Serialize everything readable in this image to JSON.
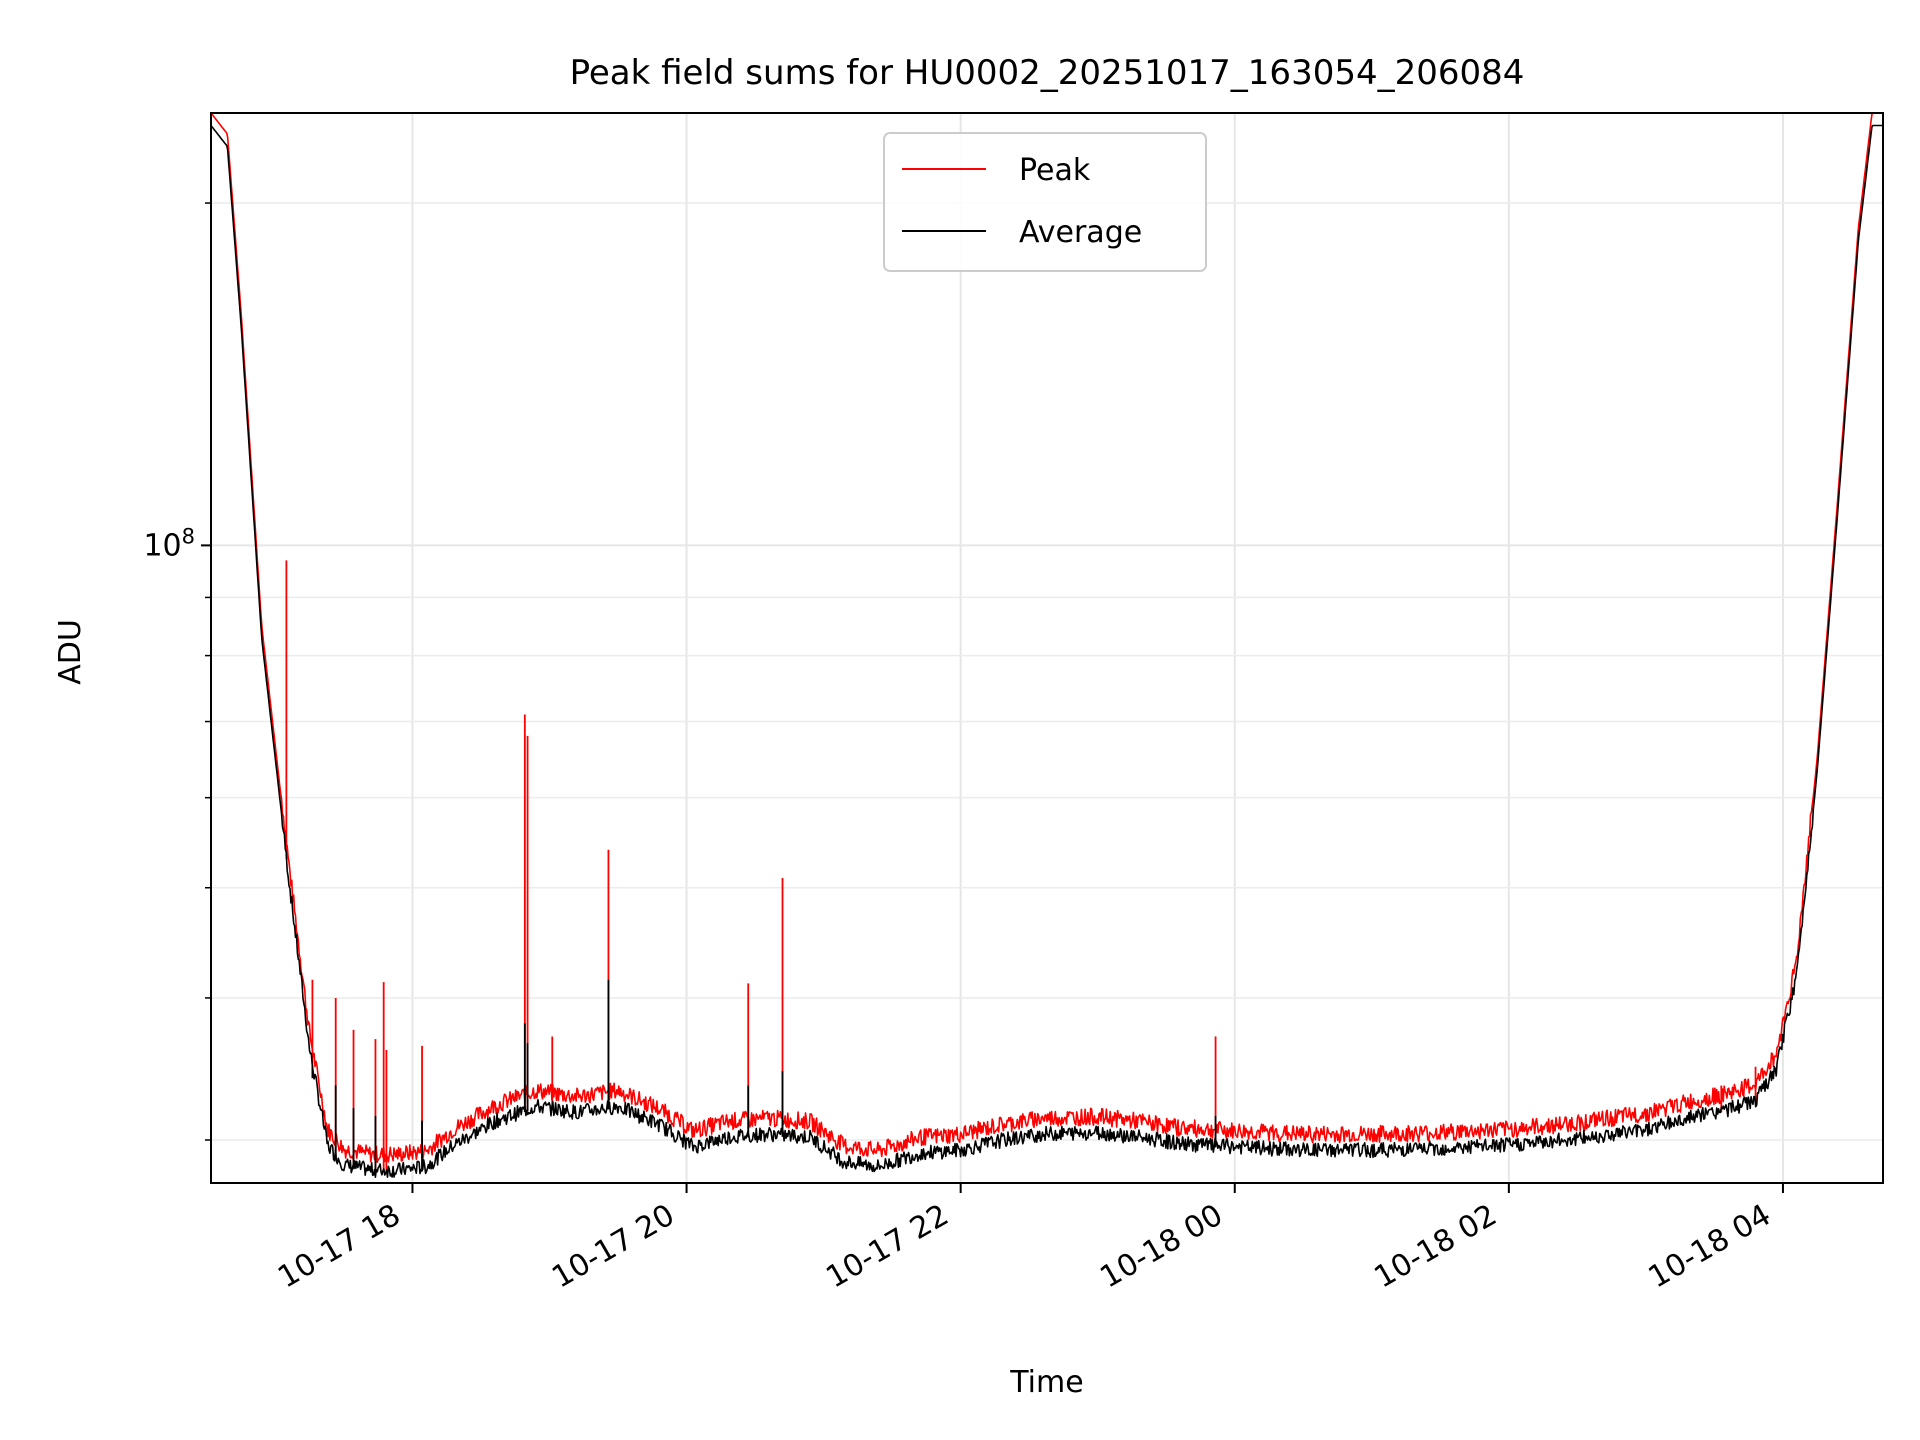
{
  "chart_data": {
    "type": "line",
    "title": "Peak field sums for HU0002_20251017_163054_206084",
    "xlabel": "Time",
    "ylabel": "ADU",
    "xlim_hours": [
      -1.47,
      10.73
    ],
    "ylim": [
      27500000,
      240000000
    ],
    "yscale": "log",
    "grid": true,
    "legend_position": "upper center",
    "x_ticks": [
      {
        "hour": 0,
        "label": "10-17 18"
      },
      {
        "hour": 2,
        "label": "10-17 20"
      },
      {
        "hour": 4,
        "label": "10-17 22"
      },
      {
        "hour": 6,
        "label": "10-18 00"
      },
      {
        "hour": 8,
        "label": "10-18 02"
      },
      {
        "hour": 10,
        "label": "10-18 04"
      }
    ],
    "y_major_ticks": [
      {
        "value": 100000000,
        "base": "10",
        "exp": "8"
      }
    ],
    "y_minor_ticks": [
      30000000,
      40000000,
      50000000,
      60000000,
      70000000,
      80000000,
      90000000,
      200000000
    ],
    "series": [
      {
        "name": "Peak",
        "color": "#ff0000",
        "base_curve": [
          [
            -1.47,
            240000000
          ],
          [
            -1.35,
            230000000
          ],
          [
            -1.25,
            160000000
          ],
          [
            -1.1,
            85000000
          ],
          [
            -0.9,
            52000000
          ],
          [
            -0.75,
            37000000
          ],
          [
            -0.62,
            30500000
          ],
          [
            -0.5,
            29300000
          ],
          [
            -0.3,
            29000000
          ],
          [
            -0.1,
            29000000
          ],
          [
            0.1,
            29200000
          ],
          [
            0.3,
            30500000
          ],
          [
            0.6,
            32000000
          ],
          [
            0.9,
            33000000
          ],
          [
            1.2,
            32600000
          ],
          [
            1.5,
            33000000
          ],
          [
            1.8,
            31800000
          ],
          [
            2.05,
            30400000
          ],
          [
            2.3,
            31000000
          ],
          [
            2.6,
            31200000
          ],
          [
            2.9,
            31000000
          ],
          [
            3.15,
            29500000
          ],
          [
            3.4,
            29200000
          ],
          [
            3.7,
            30000000
          ],
          [
            4.0,
            30200000
          ],
          [
            4.3,
            30800000
          ],
          [
            4.6,
            31200000
          ],
          [
            5.0,
            31300000
          ],
          [
            5.3,
            31000000
          ],
          [
            5.6,
            30600000
          ],
          [
            6.0,
            30400000
          ],
          [
            6.5,
            30200000
          ],
          [
            7.0,
            30200000
          ],
          [
            7.5,
            30300000
          ],
          [
            8.0,
            30500000
          ],
          [
            8.5,
            30900000
          ],
          [
            9.0,
            31500000
          ],
          [
            9.3,
            32200000
          ],
          [
            9.6,
            32800000
          ],
          [
            9.8,
            33400000
          ],
          [
            9.95,
            35500000
          ],
          [
            10.1,
            43000000
          ],
          [
            10.25,
            65000000
          ],
          [
            10.4,
            110000000
          ],
          [
            10.55,
            190000000
          ],
          [
            10.65,
            240000000
          ],
          [
            10.73,
            240000000
          ]
        ],
        "spikes": [
          [
            -0.92,
            97000000
          ],
          [
            -0.73,
            41500000
          ],
          [
            -0.56,
            40000000
          ],
          [
            -0.43,
            37500000
          ],
          [
            -0.27,
            36800000
          ],
          [
            -0.21,
            41300000
          ],
          [
            -0.19,
            36000000
          ],
          [
            0.07,
            36300000
          ],
          [
            0.82,
            71000000
          ],
          [
            0.84,
            68000000
          ],
          [
            1.02,
            37000000
          ],
          [
            1.43,
            54000000
          ],
          [
            2.45,
            41200000
          ],
          [
            2.7,
            51000000
          ],
          [
            5.86,
            37000000
          ],
          [
            9.8,
            34800000
          ],
          [
            9.55,
            33500000
          ]
        ]
      },
      {
        "name": "Average",
        "color": "#000000",
        "offset_ratio": 0.975,
        "spikes": [
          [
            -0.73,
            34000000
          ],
          [
            -0.56,
            33500000
          ],
          [
            -0.43,
            32000000
          ],
          [
            -0.27,
            31500000
          ],
          [
            0.07,
            31200000
          ],
          [
            0.82,
            38000000
          ],
          [
            0.84,
            36500000
          ],
          [
            1.43,
            41500000
          ],
          [
            2.45,
            33500000
          ],
          [
            2.7,
            34500000
          ],
          [
            5.86,
            31500000
          ]
        ]
      }
    ]
  }
}
